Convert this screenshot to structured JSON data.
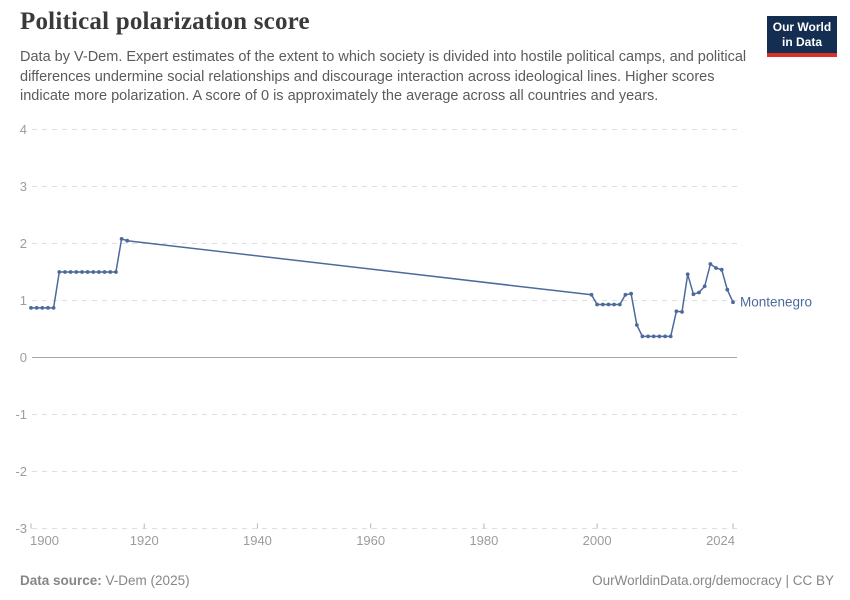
{
  "header": {
    "title": "Political polarization score",
    "subtitle": "Data by V-Dem. Expert estimates of the extent to which society is divided into hostile political camps, and political differences undermine social relationships and discourage interaction across ideological lines. Higher scores indicate more polarization. A score of 0 is approximately the average across all countries and years.",
    "logo": {
      "line1": "Our World",
      "line2": "in Data"
    }
  },
  "footer": {
    "data_source_label": "Data source:",
    "data_source_value": "V-Dem (2025)",
    "attribution": "OurWorldinData.org/democracy | CC BY"
  },
  "chart_data": {
    "type": "line",
    "title": "Political polarization score",
    "entity": "Montenegro",
    "xlabel": "",
    "ylabel": "",
    "xlim": [
      1900,
      2024
    ],
    "ylim": [
      -3,
      4
    ],
    "xticks": [
      1900,
      1920,
      1940,
      1960,
      1980,
      2000,
      2024
    ],
    "yticks": [
      4,
      3,
      2,
      1,
      0,
      -1,
      -2,
      -3
    ],
    "grid": "horizontal-dashed, solid zero line, data gap 1917-1999 drawn as straight interpolated segment",
    "legend_position": "series label at right end of line",
    "line_color": "#4C6A9C",
    "colors": {
      "grid": "#dedede",
      "axis_zero": "#a8a8a8",
      "tick": "#b5b5b5",
      "axis_text": "#9c9c9c"
    },
    "x": [
      1900,
      1901,
      1902,
      1903,
      1904,
      1905,
      1906,
      1907,
      1908,
      1909,
      1910,
      1911,
      1912,
      1913,
      1914,
      1915,
      1916,
      1917,
      1999,
      2000,
      2001,
      2002,
      2003,
      2004,
      2005,
      2006,
      2007,
      2008,
      2009,
      2010,
      2011,
      2012,
      2013,
      2014,
      2015,
      2016,
      2017,
      2018,
      2019,
      2020,
      2021,
      2022,
      2023,
      2024
    ],
    "y": [
      0.87,
      0.87,
      0.87,
      0.87,
      0.87,
      1.5,
      1.5,
      1.5,
      1.5,
      1.5,
      1.5,
      1.5,
      1.5,
      1.5,
      1.5,
      1.5,
      2.08,
      2.05,
      1.1,
      0.93,
      0.93,
      0.93,
      0.93,
      0.93,
      1.1,
      1.12,
      0.57,
      0.37,
      0.37,
      0.37,
      0.37,
      0.37,
      0.37,
      0.81,
      0.8,
      1.46,
      1.11,
      1.14,
      1.25,
      1.64,
      1.57,
      1.54,
      1.19,
      0.97
    ]
  }
}
